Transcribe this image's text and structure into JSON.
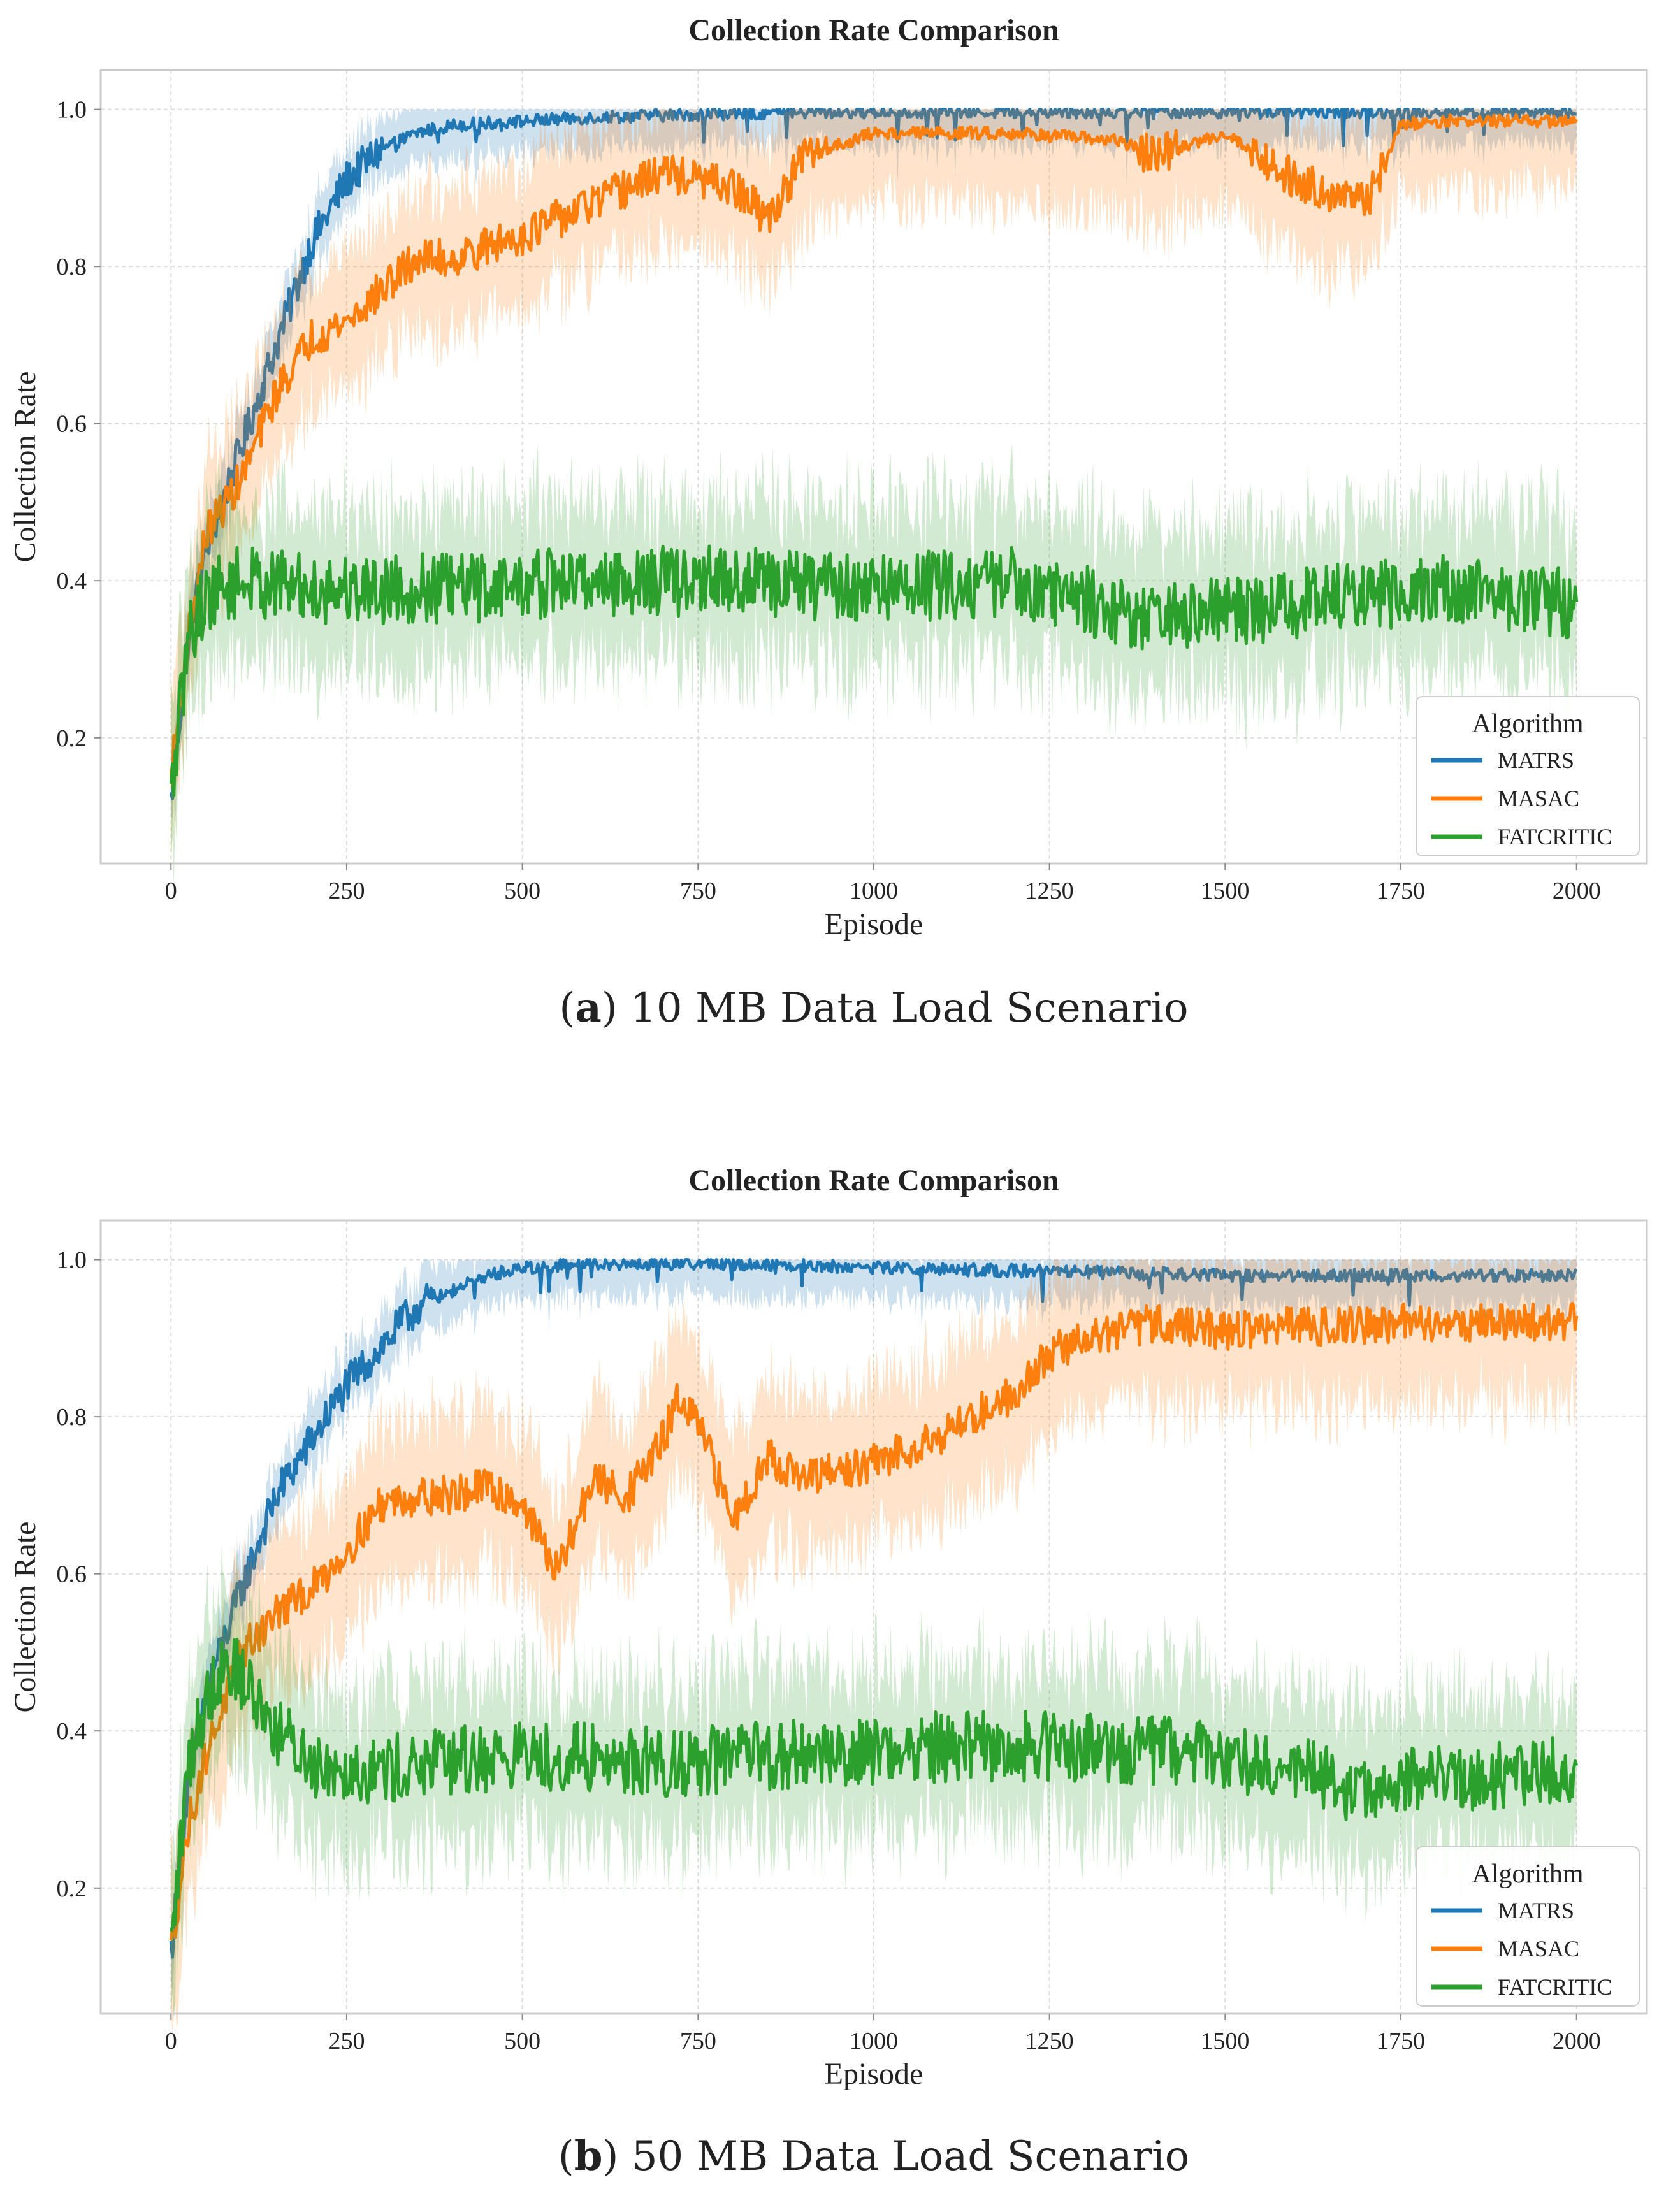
{
  "chart_data": [
    {
      "type": "line",
      "title": "Collection Rate Comparison",
      "xlabel": "Episode",
      "ylabel": "Collection Rate",
      "xlim": [
        -100,
        2100
      ],
      "ylim": [
        0.04,
        1.05
      ],
      "x_ticks": [
        0,
        250,
        500,
        750,
        1000,
        1250,
        1500,
        1750,
        2000
      ],
      "y_ticks": [
        0.2,
        0.4,
        0.6,
        0.8,
        1.0
      ],
      "x_tick_labels": [
        "0",
        "250",
        "500",
        "750",
        "1000",
        "1250",
        "1500",
        "1750",
        "2000"
      ],
      "y_tick_labels": [
        "0.2",
        "0.4",
        "0.6",
        "0.8",
        "1.0"
      ],
      "grid": true,
      "legend": {
        "title": "Algorithm",
        "placement": "lower-right",
        "entries": [
          "MATRS",
          "MASAC",
          "FATCRITIC"
        ]
      },
      "caption": {
        "label": "a",
        "text": "10 MB Data Load Scenario"
      },
      "series": [
        {
          "name": "MATRS",
          "color": "#1f77b4",
          "band": 0.04,
          "x": [
            0,
            25,
            50,
            100,
            150,
            200,
            250,
            300,
            350,
            400,
            500,
            600,
            800,
            1000,
            1200,
            1500,
            1800,
            2000
          ],
          "values": [
            0.12,
            0.33,
            0.44,
            0.57,
            0.7,
            0.83,
            0.91,
            0.95,
            0.97,
            0.98,
            0.985,
            0.99,
            0.995,
            0.997,
            0.997,
            0.997,
            0.997,
            0.997
          ]
        },
        {
          "name": "MASAC",
          "color": "#ff7f0e",
          "band": 0.09,
          "x": [
            0,
            25,
            50,
            100,
            150,
            200,
            250,
            300,
            350,
            400,
            500,
            600,
            700,
            800,
            850,
            900,
            1000,
            1200,
            1350,
            1400,
            1500,
            1600,
            1700,
            1750,
            1800,
            1900,
            2000
          ],
          "values": [
            0.15,
            0.33,
            0.46,
            0.53,
            0.64,
            0.71,
            0.73,
            0.77,
            0.81,
            0.81,
            0.84,
            0.88,
            0.92,
            0.9,
            0.86,
            0.94,
            0.97,
            0.97,
            0.96,
            0.94,
            0.97,
            0.91,
            0.88,
            0.98,
            0.985,
            0.985,
            0.985
          ]
        },
        {
          "name": "FATCRITIC",
          "color": "#2ca02c",
          "band": 0.1,
          "x": [
            0,
            25,
            50,
            100,
            200,
            400,
            600,
            800,
            1000,
            1200,
            1400,
            1500,
            1600,
            1800,
            2000
          ],
          "values": [
            0.12,
            0.33,
            0.38,
            0.4,
            0.39,
            0.39,
            0.4,
            0.4,
            0.39,
            0.4,
            0.35,
            0.36,
            0.37,
            0.39,
            0.37
          ]
        }
      ]
    },
    {
      "type": "line",
      "title": "Collection Rate Comparison",
      "xlabel": "Episode",
      "ylabel": "Collection Rate",
      "xlim": [
        -100,
        2100
      ],
      "ylim": [
        0.04,
        1.05
      ],
      "x_ticks": [
        0,
        250,
        500,
        750,
        1000,
        1250,
        1500,
        1750,
        2000
      ],
      "y_ticks": [
        0.2,
        0.4,
        0.6,
        0.8,
        1.0
      ],
      "x_tick_labels": [
        "0",
        "250",
        "500",
        "750",
        "1000",
        "1250",
        "1500",
        "1750",
        "2000"
      ],
      "y_tick_labels": [
        "0.2",
        "0.4",
        "0.6",
        "0.8",
        "1.0"
      ],
      "grid": true,
      "legend": {
        "title": "Algorithm",
        "placement": "lower-right",
        "entries": [
          "MATRS",
          "MASAC",
          "FATCRITIC"
        ]
      },
      "caption": {
        "label": "b",
        "text": "50 MB Data Load Scenario"
      },
      "series": [
        {
          "name": "MATRS",
          "color": "#1f77b4",
          "band": 0.04,
          "x": [
            0,
            25,
            50,
            100,
            150,
            200,
            250,
            300,
            350,
            400,
            450,
            500,
            600,
            800,
            1000,
            1500,
            2000
          ],
          "values": [
            0.12,
            0.33,
            0.45,
            0.58,
            0.7,
            0.77,
            0.84,
            0.89,
            0.94,
            0.96,
            0.98,
            0.99,
            0.995,
            0.995,
            0.99,
            0.98,
            0.98
          ]
        },
        {
          "name": "MASAC",
          "color": "#ff7f0e",
          "band": 0.1,
          "x": [
            0,
            25,
            50,
            100,
            150,
            200,
            250,
            300,
            350,
            400,
            450,
            500,
            550,
            600,
            650,
            700,
            720,
            750,
            800,
            850,
            900,
            1000,
            1100,
            1200,
            1250,
            1300,
            1400,
            1500,
            1600,
            1800,
            2000
          ],
          "values": [
            0.12,
            0.28,
            0.37,
            0.5,
            0.55,
            0.58,
            0.63,
            0.69,
            0.7,
            0.7,
            0.71,
            0.69,
            0.6,
            0.72,
            0.7,
            0.77,
            0.82,
            0.79,
            0.67,
            0.75,
            0.72,
            0.74,
            0.78,
            0.83,
            0.88,
            0.9,
            0.92,
            0.91,
            0.915,
            0.92,
            0.92
          ]
        },
        {
          "name": "FATCRITIC",
          "color": "#2ca02c",
          "band": 0.1,
          "x": [
            0,
            25,
            50,
            75,
            100,
            150,
            200,
            300,
            400,
            500,
            700,
            900,
            1100,
            1300,
            1500,
            1600,
            1700,
            1800,
            2000
          ],
          "values": [
            0.12,
            0.36,
            0.44,
            0.49,
            0.47,
            0.4,
            0.36,
            0.35,
            0.36,
            0.37,
            0.36,
            0.37,
            0.38,
            0.38,
            0.37,
            0.35,
            0.32,
            0.34,
            0.35
          ]
        }
      ]
    }
  ]
}
